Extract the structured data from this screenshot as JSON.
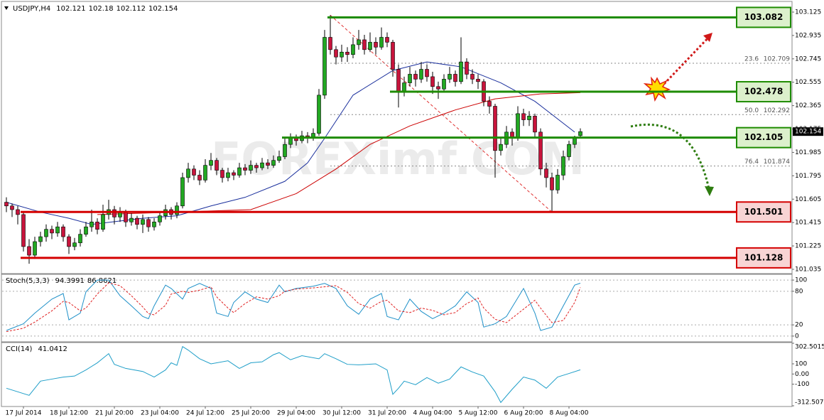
{
  "chart_data": [
    {
      "type": "candlestick",
      "title": "USDJPY,H4",
      "watermark": "FOREXimf.COM",
      "up_color": "#22a822",
      "down_color": "#c8143c",
      "ylim": [
        101.006,
        103.2
      ],
      "yticks": [
        103.125,
        102.935,
        102.745,
        102.555,
        102.365,
        102.175,
        101.985,
        101.795,
        101.605,
        101.415,
        101.225,
        101.035
      ],
      "xticks": [
        {
          "value": 3,
          "label": "17 Jul 2014"
        },
        {
          "value": 11,
          "label": "18 Jul 12:00"
        },
        {
          "value": 19,
          "label": "21 Jul 20:00"
        },
        {
          "value": 27,
          "label": "23 Jul 04:00"
        },
        {
          "value": 35,
          "label": "24 Jul 12:00"
        },
        {
          "value": 43,
          "label": "25 Jul 20:00"
        },
        {
          "value": 51,
          "label": "29 Jul 04:00"
        },
        {
          "value": 59,
          "label": "30 Jul 12:00"
        },
        {
          "value": 67,
          "label": "31 Jul 20:00"
        },
        {
          "value": 75,
          "label": "4 Aug 04:00"
        },
        {
          "value": 83,
          "label": "5 Aug 12:00"
        },
        {
          "value": 91,
          "label": "6 Aug 20:00"
        },
        {
          "value": 99,
          "label": "8 Aug 04:00"
        }
      ],
      "ohlc": [
        [
          101.58,
          101.62,
          101.5,
          101.55
        ],
        [
          101.55,
          101.57,
          101.46,
          101.52
        ],
        [
          101.52,
          101.55,
          101.4,
          101.48
        ],
        [
          101.48,
          101.5,
          101.18,
          101.22
        ],
        [
          101.22,
          101.28,
          101.08,
          101.15
        ],
        [
          101.15,
          101.3,
          101.12,
          101.26
        ],
        [
          101.26,
          101.34,
          101.22,
          101.3
        ],
        [
          101.3,
          101.4,
          101.26,
          101.36
        ],
        [
          101.36,
          101.39,
          101.28,
          101.33
        ],
        [
          101.33,
          101.42,
          101.3,
          101.38
        ],
        [
          101.38,
          101.4,
          101.26,
          101.3
        ],
        [
          101.3,
          101.32,
          101.16,
          101.22
        ],
        [
          101.22,
          101.29,
          101.19,
          101.25
        ],
        [
          101.25,
          101.36,
          101.22,
          101.32
        ],
        [
          101.32,
          101.42,
          101.3,
          101.38
        ],
        [
          101.38,
          101.52,
          101.34,
          101.42
        ],
        [
          101.42,
          101.45,
          101.32,
          101.36
        ],
        [
          101.36,
          101.56,
          101.34,
          101.48
        ],
        [
          101.48,
          101.6,
          101.44,
          101.52
        ],
        [
          101.52,
          101.55,
          101.4,
          101.46
        ],
        [
          101.46,
          101.54,
          101.42,
          101.5
        ],
        [
          101.5,
          101.52,
          101.38,
          101.42
        ],
        [
          101.42,
          101.49,
          101.39,
          101.45
        ],
        [
          101.45,
          101.47,
          101.36,
          101.4
        ],
        [
          101.4,
          101.48,
          101.33,
          101.44
        ],
        [
          101.44,
          101.46,
          101.34,
          101.38
        ],
        [
          101.38,
          101.45,
          101.35,
          101.42
        ],
        [
          101.42,
          101.5,
          101.39,
          101.47
        ],
        [
          101.47,
          101.56,
          101.44,
          101.52
        ],
        [
          101.52,
          101.54,
          101.44,
          101.48
        ],
        [
          101.48,
          101.58,
          101.45,
          101.55
        ],
        [
          101.55,
          101.82,
          101.53,
          101.78
        ],
        [
          101.78,
          101.9,
          101.74,
          101.85
        ],
        [
          101.85,
          101.88,
          101.76,
          101.8
        ],
        [
          101.8,
          101.84,
          101.72,
          101.76
        ],
        [
          101.76,
          101.93,
          101.74,
          101.88
        ],
        [
          101.88,
          101.98,
          101.84,
          101.92
        ],
        [
          101.92,
          101.94,
          101.8,
          101.84
        ],
        [
          101.84,
          101.86,
          101.74,
          101.78
        ],
        [
          101.78,
          101.86,
          101.75,
          101.82
        ],
        [
          101.82,
          101.84,
          101.76,
          101.8
        ],
        [
          101.8,
          101.9,
          101.78,
          101.86
        ],
        [
          101.86,
          101.89,
          101.8,
          101.84
        ],
        [
          101.84,
          101.92,
          101.81,
          101.88
        ],
        [
          101.88,
          101.9,
          101.82,
          101.86
        ],
        [
          101.86,
          101.94,
          101.84,
          101.9
        ],
        [
          101.9,
          101.93,
          101.85,
          101.88
        ],
        [
          101.88,
          101.96,
          101.86,
          101.92
        ],
        [
          101.92,
          102.0,
          101.9,
          101.95
        ],
        [
          101.95,
          102.1,
          101.93,
          102.05
        ],
        [
          102.05,
          102.14,
          102.02,
          102.1
        ],
        [
          102.1,
          102.13,
          102.04,
          102.08
        ],
        [
          102.08,
          102.16,
          102.06,
          102.12
        ],
        [
          102.12,
          102.15,
          102.06,
          102.1
        ],
        [
          102.1,
          102.18,
          102.08,
          102.14
        ],
        [
          102.14,
          102.5,
          102.12,
          102.45
        ],
        [
          102.45,
          102.98,
          102.42,
          102.92
        ],
        [
          102.92,
          103.1,
          102.78,
          102.82
        ],
        [
          102.82,
          102.85,
          102.7,
          102.76
        ],
        [
          102.76,
          102.86,
          102.72,
          102.8
        ],
        [
          102.8,
          102.84,
          102.72,
          102.78
        ],
        [
          102.78,
          102.92,
          102.75,
          102.86
        ],
        [
          102.86,
          102.98,
          102.82,
          102.9
        ],
        [
          102.9,
          102.94,
          102.78,
          102.82
        ],
        [
          102.82,
          102.96,
          102.8,
          102.88
        ],
        [
          102.88,
          102.92,
          102.78,
          102.84
        ],
        [
          102.84,
          103.0,
          102.82,
          102.92
        ],
        [
          102.92,
          102.96,
          102.84,
          102.88
        ],
        [
          102.88,
          102.9,
          102.6,
          102.66
        ],
        [
          102.66,
          102.7,
          102.35,
          102.48
        ],
        [
          102.48,
          102.6,
          102.44,
          102.55
        ],
        [
          102.55,
          102.68,
          102.52,
          102.62
        ],
        [
          102.62,
          102.65,
          102.52,
          102.58
        ],
        [
          102.58,
          102.72,
          102.55,
          102.66
        ],
        [
          102.66,
          102.7,
          102.56,
          102.6
        ],
        [
          102.6,
          102.64,
          102.46,
          102.52
        ],
        [
          102.52,
          102.56,
          102.42,
          102.5
        ],
        [
          102.5,
          102.62,
          102.48,
          102.58
        ],
        [
          102.58,
          102.68,
          102.55,
          102.62
        ],
        [
          102.62,
          102.65,
          102.52,
          102.56
        ],
        [
          102.56,
          102.92,
          102.54,
          102.72
        ],
        [
          102.72,
          102.75,
          102.58,
          102.62
        ],
        [
          102.62,
          102.66,
          102.54,
          102.58
        ],
        [
          102.58,
          102.62,
          102.5,
          102.56
        ],
        [
          102.56,
          102.58,
          102.36,
          102.4
        ],
        [
          102.4,
          102.44,
          102.3,
          102.36
        ],
        [
          102.36,
          102.38,
          101.78,
          102.0
        ],
        [
          102.0,
          102.1,
          101.96,
          102.05
        ],
        [
          102.05,
          102.2,
          102.02,
          102.15
        ],
        [
          102.15,
          102.18,
          102.04,
          102.1
        ],
        [
          102.1,
          102.36,
          102.08,
          102.3
        ],
        [
          102.3,
          102.34,
          102.2,
          102.25
        ],
        [
          102.25,
          102.32,
          102.2,
          102.28
        ],
        [
          102.28,
          102.3,
          102.1,
          102.15
        ],
        [
          102.15,
          102.18,
          101.8,
          101.85
        ],
        [
          101.85,
          101.9,
          101.7,
          101.78
        ],
        [
          101.78,
          101.82,
          101.5,
          101.68
        ],
        [
          101.68,
          101.85,
          101.65,
          101.8
        ],
        [
          101.8,
          102.0,
          101.76,
          101.95
        ],
        [
          101.95,
          102.08,
          101.92,
          102.05
        ],
        [
          102.05,
          102.12,
          102.02,
          102.1
        ],
        [
          102.121,
          102.18,
          102.112,
          102.154
        ]
      ],
      "overlays": [
        {
          "color": "#1a2f9c",
          "x": [
            0,
            6,
            11,
            15,
            24,
            30,
            36,
            42,
            49,
            53,
            56,
            61,
            68,
            74,
            80,
            87,
            93,
            100
          ],
          "values": [
            101.58,
            101.5,
            101.45,
            101.4,
            101.45,
            101.47,
            101.55,
            101.62,
            101.75,
            101.9,
            102.1,
            102.45,
            102.65,
            102.72,
            102.68,
            102.55,
            102.4,
            102.15
          ]
        },
        {
          "color": "#cc0000",
          "x": [
            16,
            30,
            43,
            51,
            58,
            64,
            71,
            79,
            86,
            94,
            101
          ],
          "values": [
            101.48,
            101.5,
            101.52,
            101.65,
            101.85,
            102.05,
            102.2,
            102.33,
            102.42,
            102.46,
            102.47
          ]
        }
      ],
      "fib": {
        "from_bar": 57,
        "to_bar": 96,
        "color": "#e03030",
        "levels": [
          {
            "ratio": "23.6",
            "price": 102.709
          },
          {
            "ratio": "50.0",
            "price": 102.292
          },
          {
            "ratio": "76.4",
            "price": 101.874
          }
        ]
      },
      "levels": [
        {
          "value": 103.082,
          "color": "#1e8c00",
          "fill": "#dcf0cc",
          "from_bar": 57
        },
        {
          "value": 102.478,
          "color": "#1e8c00",
          "fill": "#dcf0cc",
          "from_bar": 68
        },
        {
          "value": 102.105,
          "color": "#1e8c00",
          "fill": "#dcf0cc",
          "from_bar": 49
        },
        {
          "value": 101.501,
          "color": "#d40000",
          "fill": "#f8d4d4",
          "from_bar": 3
        },
        {
          "value": 101.128,
          "color": "#d40000",
          "fill": "#f8d4d4",
          "from_bar": 3
        }
      ]
    },
    {
      "type": "line",
      "title": "Stoch(5,3,3)",
      "grid": true,
      "ylim": [
        -9,
        109
      ],
      "yticks": [
        100,
        80,
        20,
        0
      ],
      "x": [
        0,
        3,
        5,
        8,
        10,
        11,
        13,
        14,
        16,
        18,
        20,
        22,
        24,
        25,
        26,
        28,
        29,
        31,
        32,
        34,
        36,
        37,
        39,
        40,
        42,
        44,
        46,
        48,
        49,
        51,
        54,
        56,
        58,
        60,
        62,
        64,
        66,
        67,
        69,
        71,
        73,
        75,
        77,
        79,
        81,
        83,
        84,
        86,
        88,
        91,
        93,
        94,
        96,
        98,
        100,
        101
      ],
      "series": [
        {
          "color": "#1e90c8",
          "values": [
            10,
            22,
            41,
            66,
            76,
            29,
            41,
            79,
            100,
            100,
            72,
            54,
            35,
            31,
            54,
            91,
            85,
            66,
            85,
            94,
            85,
            41,
            35,
            60,
            79,
            66,
            60,
            91,
            79,
            85,
            89,
            94,
            85,
            54,
            39,
            66,
            76,
            35,
            29,
            66,
            44,
            31,
            41,
            54,
            79,
            60,
            16,
            22,
            35,
            85,
            41,
            10,
            16,
            54,
            91,
            94.3991
          ]
        },
        {
          "color": "#e02020",
          "dash": true,
          "values": [
            8,
            14,
            25,
            45,
            62,
            60,
            45,
            50,
            75,
            95,
            90,
            72,
            52,
            40,
            38,
            55,
            75,
            80,
            78,
            82,
            88,
            70,
            50,
            42,
            58,
            70,
            66,
            72,
            80,
            84,
            86,
            88,
            90,
            78,
            58,
            50,
            62,
            64,
            45,
            42,
            50,
            46,
            38,
            42,
            58,
            68,
            50,
            30,
            24,
            48,
            64,
            50,
            24,
            28,
            60,
            86.8621
          ]
        }
      ]
    },
    {
      "type": "line",
      "title": "CCI(14)",
      "grid": false,
      "ylim": [
        -312.5078,
        302.5015
      ],
      "yticks": [
        302.5015,
        100,
        {
          "value": 0,
          "label": "0.00"
        },
        -100,
        -312.5078
      ],
      "x": [
        0,
        2,
        4,
        6,
        8,
        10,
        12,
        14,
        16,
        18,
        19,
        21,
        24,
        26,
        28,
        29,
        30,
        31,
        32,
        34,
        36,
        39,
        41,
        43,
        45,
        47,
        48,
        50,
        52,
        55,
        56,
        58,
        60,
        62,
        65,
        67,
        68,
        69,
        70,
        72,
        74,
        76,
        78,
        80,
        82,
        84,
        86,
        87,
        89,
        91,
        93,
        95,
        97,
        99,
        101
      ],
      "series": [
        {
          "color": "#1e9ec8",
          "values": [
            -140,
            -175,
            -210,
            -70,
            -50,
            -30,
            -20,
            40,
            110,
            200,
            95,
            55,
            25,
            -30,
            40,
            110,
            85,
            270,
            235,
            150,
            100,
            130,
            55,
            110,
            120,
            190,
            210,
            140,
            180,
            150,
            200,
            150,
            95,
            90,
            100,
            40,
            -200,
            -140,
            -70,
            -105,
            -35,
            -90,
            -50,
            70,
            20,
            -20,
            -175,
            -280,
            -150,
            -30,
            -60,
            -140,
            -30,
            5,
            41.0412
          ]
        }
      ]
    }
  ]
}
